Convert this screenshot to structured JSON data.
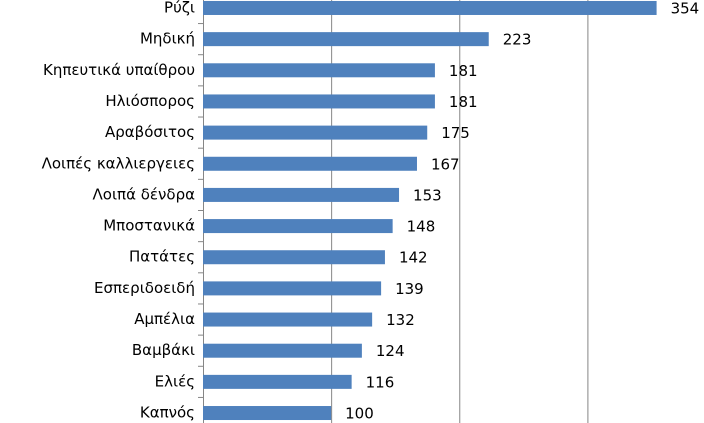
{
  "chart_data": {
    "type": "barh",
    "categories": [
      "Ρύζι",
      "Μηδική",
      "Κηπευτικά υπαίθρου",
      "Ηλιόσπορος",
      "Αραβόσιτος",
      "Λοιπές καλλιεργειες",
      "Λοιπά δένδρα",
      "Μποστανικά",
      "Πατάτες",
      "Εσπεριδοειδή",
      "Αμπέλια",
      "Βαμβάκι",
      "Ελιές",
      "Καπνός"
    ],
    "values": [
      354,
      223,
      181,
      181,
      175,
      167,
      153,
      148,
      142,
      139,
      132,
      124,
      116,
      100
    ],
    "color": "#4f81bd",
    "xlim": [
      0,
      391
    ],
    "xticks": [
      0,
      100,
      200,
      300
    ],
    "grid": true
  }
}
